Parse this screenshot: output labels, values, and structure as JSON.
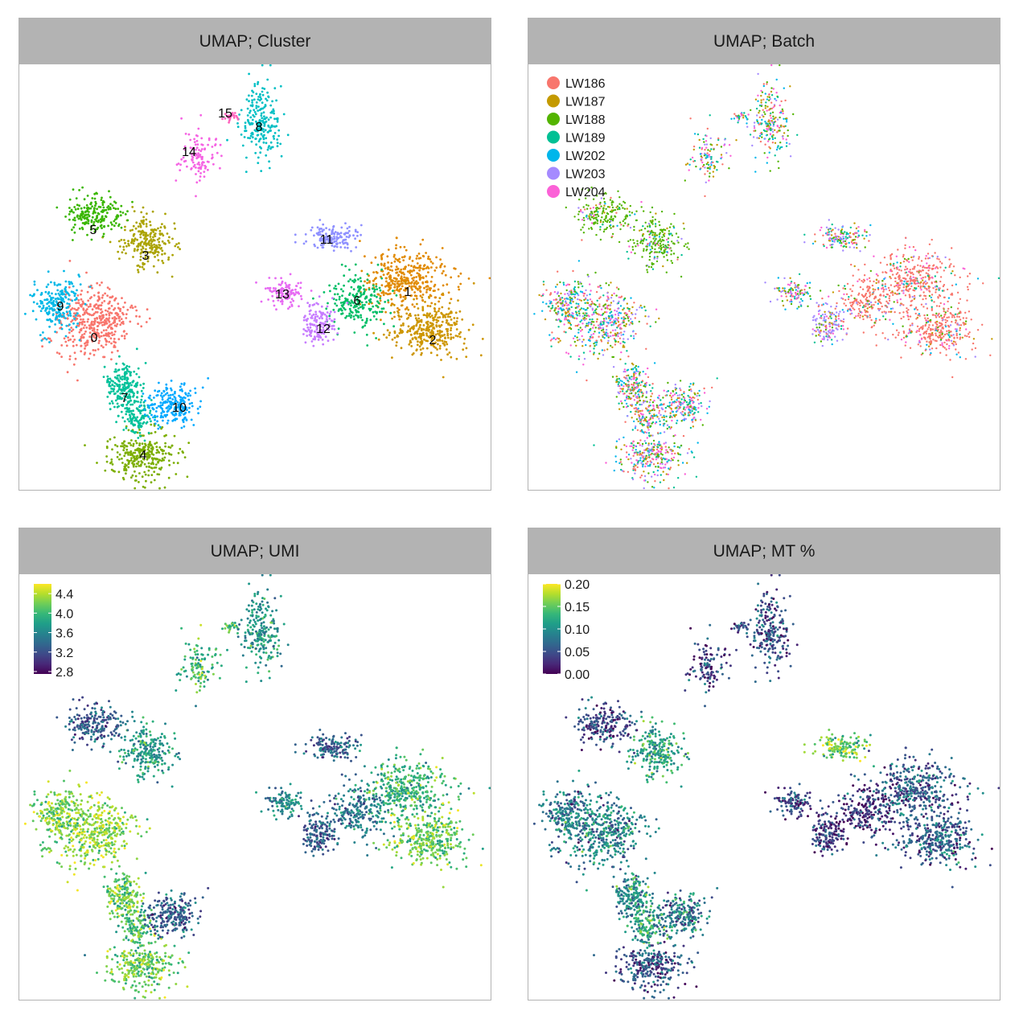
{
  "chart_data": [
    {
      "type": "scatter",
      "title": "UMAP; Cluster",
      "color_by": "cluster",
      "clusters": [
        {
          "label": "0",
          "color": "#F8766D"
        },
        {
          "label": "1",
          "color": "#E18A00"
        },
        {
          "label": "2",
          "color": "#CD9600"
        },
        {
          "label": "3",
          "color": "#ABA300"
        },
        {
          "label": "4",
          "color": "#7CAE00"
        },
        {
          "label": "5",
          "color": "#39B600"
        },
        {
          "label": "6",
          "color": "#00BE67"
        },
        {
          "label": "7",
          "color": "#00C19A"
        },
        {
          "label": "8",
          "color": "#00BFC4"
        },
        {
          "label": "9",
          "color": "#00B8E7"
        },
        {
          "label": "10",
          "color": "#00A9FF"
        },
        {
          "label": "11",
          "color": "#8F91FF"
        },
        {
          "label": "12",
          "color": "#C77CFF"
        },
        {
          "label": "13",
          "color": "#E76BF3"
        },
        {
          "label": "14",
          "color": "#F564E3"
        },
        {
          "label": "15",
          "color": "#FF62BC"
        }
      ]
    },
    {
      "type": "scatter",
      "title": "UMAP; Batch",
      "color_by": "batch",
      "legend_position": "top-left",
      "legend": [
        {
          "label": "LW186",
          "color": "#F8766D"
        },
        {
          "label": "LW187",
          "color": "#C49A00"
        },
        {
          "label": "LW188",
          "color": "#53B400"
        },
        {
          "label": "LW189",
          "color": "#00C094"
        },
        {
          "label": "LW202",
          "color": "#00B6EB"
        },
        {
          "label": "LW203",
          "color": "#A58AFF"
        },
        {
          "label": "LW204",
          "color": "#FB61D7"
        }
      ]
    },
    {
      "type": "scatter",
      "title": "UMAP; UMI",
      "color_by": "continuous",
      "colorscale": "viridis",
      "legend_position": "top-left",
      "ticks": [
        "4.4",
        "4.0",
        "3.6",
        "3.2",
        "2.8"
      ],
      "range": [
        2.75,
        4.6
      ]
    },
    {
      "type": "scatter",
      "title": "UMAP; MT %",
      "color_by": "continuous",
      "colorscale": "viridis",
      "legend_position": "top-left",
      "ticks": [
        "0.20",
        "0.15",
        "0.10",
        "0.05",
        "0.00"
      ],
      "range": [
        0.0,
        0.2
      ]
    }
  ]
}
